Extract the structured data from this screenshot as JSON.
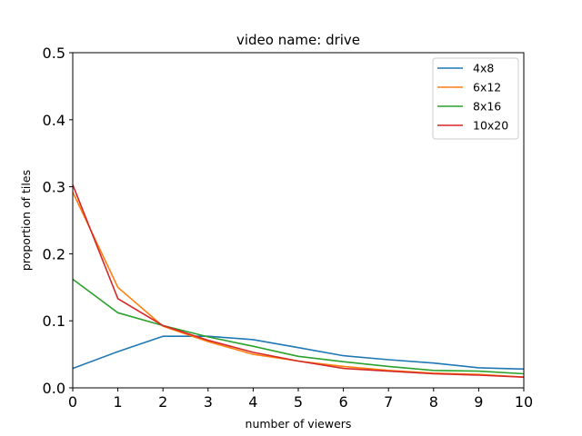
{
  "chart_data": {
    "type": "line",
    "title": "video name: drive",
    "xlabel": "number of viewers",
    "ylabel": "proportion of tiles",
    "x": [
      0,
      1,
      2,
      3,
      4,
      5,
      6,
      7,
      8,
      9,
      10
    ],
    "xlim": [
      0,
      10
    ],
    "ylim": [
      0,
      0.5
    ],
    "xticks": [
      "0",
      "1",
      "2",
      "3",
      "4",
      "5",
      "6",
      "7",
      "8",
      "9",
      "10"
    ],
    "yticks": [
      "0.0",
      "0.1",
      "0.2",
      "0.3",
      "0.4",
      "0.5"
    ],
    "grid": false,
    "legend_position": "top-right",
    "series": [
      {
        "name": "4x8",
        "color": "#1f77b4",
        "values": [
          0.029,
          0.054,
          0.077,
          0.077,
          0.072,
          0.06,
          0.048,
          0.042,
          0.037,
          0.03,
          0.028
        ]
      },
      {
        "name": "6x12",
        "color": "#ff7f0e",
        "values": [
          0.292,
          0.15,
          0.092,
          0.069,
          0.05,
          0.04,
          0.032,
          0.026,
          0.022,
          0.02,
          0.016
        ]
      },
      {
        "name": "8x16",
        "color": "#2ca02c",
        "values": [
          0.162,
          0.112,
          0.093,
          0.076,
          0.062,
          0.047,
          0.039,
          0.032,
          0.026,
          0.025,
          0.021
        ]
      },
      {
        "name": "10x20",
        "color": "#d62728",
        "values": [
          0.303,
          0.133,
          0.093,
          0.071,
          0.053,
          0.04,
          0.029,
          0.025,
          0.021,
          0.019,
          0.016
        ]
      }
    ]
  }
}
